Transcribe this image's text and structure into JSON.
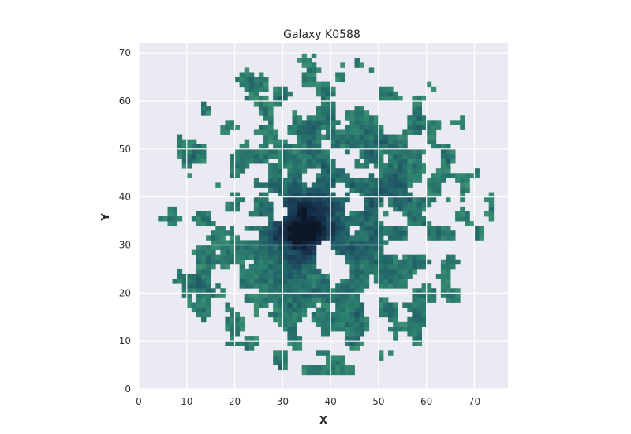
{
  "chart_data": {
    "type": "heatmap",
    "title": "Galaxy K0588",
    "xlabel": "X",
    "ylabel": "Y",
    "xlim": [
      0,
      77
    ],
    "ylim": [
      0,
      72
    ],
    "xticks": [
      "0",
      "10",
      "20",
      "30",
      "40",
      "50",
      "60",
      "70"
    ],
    "yticks": [
      "0",
      "10",
      "20",
      "30",
      "40",
      "50",
      "60",
      "70"
    ],
    "grid": true,
    "colormap": {
      "name": "cubehelix-teal",
      "stops": [
        "#0b1626",
        "#193651",
        "#1f5766",
        "#2c7f6e",
        "#4fa277"
      ]
    },
    "background_color": "#eaeaf2",
    "grid_color": "#ffffff",
    "peak": {
      "x": 34.5,
      "y": 33.5
    },
    "disk_center": {
      "x": 39,
      "y": 37
    },
    "disk_radius": {
      "x": 35,
      "y": 34
    },
    "cell_size": 1
  }
}
